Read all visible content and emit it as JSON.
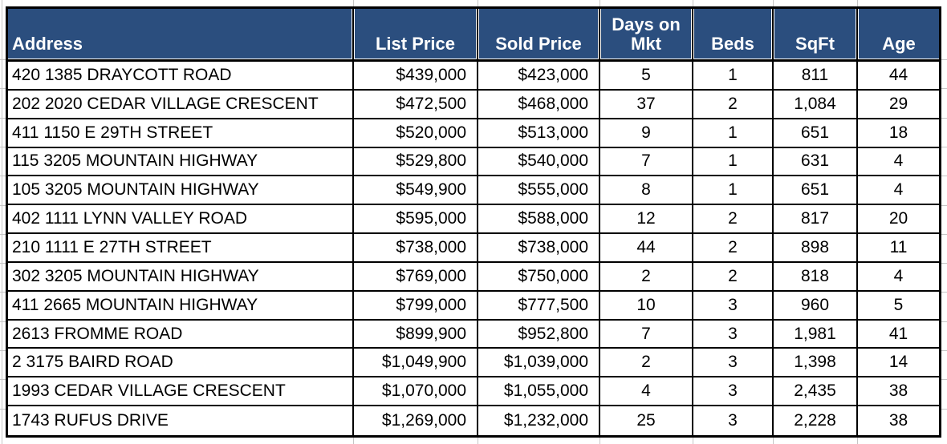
{
  "colors": {
    "header_bg": "#2B4E7E",
    "header_text": "#FFFFFF",
    "body_text": "#000000",
    "border": "#000000",
    "gridline": "#C6C6C6"
  },
  "table": {
    "columns": [
      {
        "id": "address",
        "label": "Address",
        "align": "left"
      },
      {
        "id": "list-price",
        "label": "List Price",
        "align": "right"
      },
      {
        "id": "sold-price",
        "label": "Sold Price",
        "align": "right"
      },
      {
        "id": "days-on-mkt",
        "label": "Days on Mkt",
        "align": "center"
      },
      {
        "id": "beds",
        "label": "Beds",
        "align": "center"
      },
      {
        "id": "sqft",
        "label": "SqFt",
        "align": "center"
      },
      {
        "id": "age",
        "label": "Age",
        "align": "center"
      }
    ],
    "rows": [
      [
        "420 1385 DRAYCOTT ROAD",
        "$439,000",
        "$423,000",
        "5",
        "1",
        "811",
        "44"
      ],
      [
        "202 2020 CEDAR VILLAGE CRESCENT",
        "$472,500",
        "$468,000",
        "37",
        "2",
        "1,084",
        "29"
      ],
      [
        "411 1150 E 29TH STREET",
        "$520,000",
        "$513,000",
        "9",
        "1",
        "651",
        "18"
      ],
      [
        "115 3205 MOUNTAIN HIGHWAY",
        "$529,800",
        "$540,000",
        "7",
        "1",
        "631",
        "4"
      ],
      [
        "105 3205 MOUNTAIN HIGHWAY",
        "$549,900",
        "$555,000",
        "8",
        "1",
        "651",
        "4"
      ],
      [
        "402 1111 LYNN VALLEY ROAD",
        "$595,000",
        "$588,000",
        "12",
        "2",
        "817",
        "20"
      ],
      [
        "210 1111 E 27TH STREET",
        "$738,000",
        "$738,000",
        "44",
        "2",
        "898",
        "11"
      ],
      [
        "302 3205 MOUNTAIN HIGHWAY",
        "$769,000",
        "$750,000",
        "2",
        "2",
        "818",
        "4"
      ],
      [
        "411 2665 MOUNTAIN HIGHWAY",
        "$799,000",
        "$777,500",
        "10",
        "3",
        "960",
        "5"
      ],
      [
        "2613 FROMME ROAD",
        "$899,900",
        "$952,800",
        "7",
        "3",
        "1,981",
        "41"
      ],
      [
        "2 3175 BAIRD ROAD",
        "$1,049,900",
        "$1,039,000",
        "2",
        "3",
        "1,398",
        "14"
      ],
      [
        "1993 CEDAR VILLAGE CRESCENT",
        "$1,070,000",
        "$1,055,000",
        "4",
        "3",
        "2,435",
        "38"
      ],
      [
        "1743 RUFUS DRIVE",
        "$1,269,000",
        "$1,232,000",
        "25",
        "3",
        "2,228",
        "38"
      ]
    ]
  }
}
